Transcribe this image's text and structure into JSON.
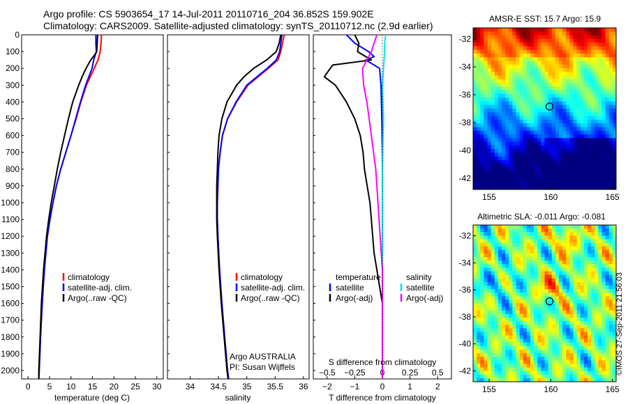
{
  "header": {
    "line1": "Argo profile: CS 5903654_17 14-Jul-2011 20110716_204 36.852S 159.902E",
    "line2": "Climatology: CARS2009. Satellite-adjusted climatology: synTS_20110712.nc (2.9d earlier)"
  },
  "colors": {
    "climatology": "#ff0000",
    "satellite": "#0000ff",
    "argo": "#000000",
    "sat_diff_T": "#0000ff",
    "sat_diff_S": "#00e5ee",
    "argo_diff_S": "#ff00ff"
  },
  "depth_axis": {
    "range": [
      0,
      2050
    ],
    "ticks": [
      0,
      100,
      200,
      300,
      400,
      500,
      600,
      700,
      800,
      900,
      1000,
      1100,
      1200,
      1300,
      1400,
      1500,
      1600,
      1700,
      1800,
      1900,
      2000
    ],
    "labels": [
      "0",
      "100",
      "200",
      "300",
      "400",
      "500",
      "600",
      "700",
      "800",
      "900",
      "1000",
      "1100",
      "1200",
      "1300",
      "1400",
      "1500",
      "1600",
      "1700",
      "1800",
      "1900",
      "2000"
    ]
  },
  "chart_data": [
    {
      "type": "line",
      "id": "temperature",
      "xlabel": "temperature (deg C)",
      "xlim": [
        -1.5,
        31.5
      ],
      "xticks": [
        0,
        5,
        10,
        15,
        20,
        25,
        30
      ],
      "xtick_labels": [
        "0",
        "5",
        "10",
        "15",
        "20",
        "25",
        "30"
      ],
      "legend": [
        "climatology",
        "satellite-adj. clim.",
        "Argo(..raw -QC)"
      ],
      "series": [
        {
          "name": "climatology",
          "color": "red",
          "depth": [
            0,
            50,
            100,
            150,
            200,
            300,
            400,
            500,
            600,
            700,
            800,
            900,
            1000,
            1100,
            1200,
            1400,
            1600,
            1800,
            2000,
            2050
          ],
          "values": [
            17.1,
            17.0,
            16.8,
            16.3,
            15.4,
            13.6,
            12.3,
            11.2,
            10.0,
            8.8,
            7.6,
            6.6,
            5.8,
            5.1,
            4.5,
            3.8,
            3.3,
            2.9,
            2.6,
            2.5
          ]
        },
        {
          "name": "satellite-adj. clim.",
          "color": "blue",
          "depth": [
            0,
            50,
            100,
            150,
            200,
            300,
            400,
            500,
            600,
            700,
            800,
            900,
            1000,
            1100,
            1200,
            1400,
            1600,
            1800,
            2000,
            2050
          ],
          "values": [
            15.8,
            15.8,
            15.9,
            15.3,
            14.9,
            13.4,
            12.2,
            11.1,
            10.0,
            8.8,
            7.6,
            6.6,
            5.8,
            5.1,
            4.5,
            3.8,
            3.3,
            2.9,
            2.6,
            2.5
          ]
        },
        {
          "name": "Argo(..raw -QC)",
          "color": "black",
          "depth": [
            0,
            50,
            100,
            120,
            150,
            200,
            250,
            300,
            400,
            500,
            600,
            700,
            800,
            900,
            1000,
            1100,
            1200,
            1400,
            1600,
            1800,
            2000,
            2050
          ],
          "values": [
            16.2,
            16.1,
            16.0,
            15.5,
            14.6,
            13.5,
            12.6,
            11.8,
            10.4,
            9.4,
            8.5,
            7.6,
            6.8,
            6.1,
            5.4,
            4.8,
            4.3,
            3.6,
            3.1,
            2.8,
            2.5,
            2.5
          ]
        }
      ]
    },
    {
      "type": "line",
      "id": "salinity",
      "xlabel": "salinity",
      "xlim": [
        33.6,
        36.1
      ],
      "xticks": [
        34,
        34.5,
        35,
        35.5,
        36
      ],
      "xtick_labels": [
        "34",
        "34.5",
        "35",
        "35.5",
        "36"
      ],
      "legend": [
        "climatology",
        "satellite-adj. clim.",
        "Argo(..raw -QC)"
      ],
      "annotation": [
        "Argo AUSTRALIA",
        "PI: Susan Wijffels"
      ],
      "series": [
        {
          "name": "climatology",
          "color": "red",
          "depth": [
            0,
            50,
            100,
            150,
            200,
            300,
            400,
            500,
            600,
            700,
            800,
            900,
            1000,
            1100,
            1200,
            1400,
            1600,
            1800,
            2000,
            2050
          ],
          "values": [
            35.66,
            35.63,
            35.6,
            35.55,
            35.38,
            35.02,
            34.82,
            34.66,
            34.57,
            34.53,
            34.5,
            34.49,
            34.48,
            34.48,
            34.49,
            34.52,
            34.56,
            34.61,
            34.66,
            34.68
          ]
        },
        {
          "name": "satellite-adj. clim.",
          "color": "blue",
          "depth": [
            0,
            50,
            100,
            150,
            200,
            300,
            400,
            500,
            600,
            700,
            800,
            900,
            1000,
            1100,
            1200,
            1400,
            1600,
            1800,
            2000,
            2050
          ],
          "values": [
            35.62,
            35.6,
            35.58,
            35.52,
            35.36,
            35.0,
            34.81,
            34.66,
            34.57,
            34.53,
            34.5,
            34.49,
            34.48,
            34.48,
            34.49,
            34.52,
            34.56,
            34.61,
            34.66,
            34.68
          ]
        },
        {
          "name": "Argo(..raw -QC)",
          "color": "black",
          "depth": [
            0,
            50,
            100,
            150,
            200,
            250,
            300,
            400,
            500,
            600,
            700,
            800,
            900,
            1000,
            1100,
            1200,
            1400,
            1600,
            1800,
            2000,
            2050
          ],
          "values": [
            35.6,
            35.57,
            35.52,
            35.35,
            35.12,
            34.95,
            34.82,
            34.65,
            34.56,
            34.51,
            34.49,
            34.48,
            34.47,
            34.47,
            34.47,
            34.48,
            34.51,
            34.55,
            34.6,
            34.65,
            34.67
          ]
        }
      ]
    },
    {
      "type": "line",
      "id": "difference",
      "xlabel": "T difference from climatology",
      "xlabel_top": "S difference from climatology",
      "xlim": [
        -2.5,
        2.5
      ],
      "xticks": [
        -2,
        -1,
        0,
        1,
        2
      ],
      "xtick_labels": [
        "−2",
        "−1",
        "0",
        "1",
        "2"
      ],
      "xticks_S": [
        -0.5,
        -0.25,
        0,
        0.25,
        0.5
      ],
      "xtick_labels_S": [
        "−0.5",
        "−0.25",
        "0",
        "0.25",
        "0.5"
      ],
      "legend_left_title": "temperature",
      "legend_right_title": "salinity",
      "legend_left": [
        "satellite",
        "Argo(-adj)"
      ],
      "legend_right": [
        "satellite",
        "Argo(-adj)"
      ],
      "series": [
        {
          "name": "T satellite",
          "color": "blue",
          "depth": [
            0,
            50,
            100,
            130,
            150,
            200,
            300,
            500,
            700,
            1000,
            1500,
            2000,
            2050
          ],
          "values": [
            -1.3,
            -1.0,
            -0.5,
            -0.3,
            -0.6,
            -0.1,
            -0.05,
            -0.02,
            0,
            0,
            0,
            0,
            0
          ]
        },
        {
          "name": "T Argo(-adj)",
          "color": "black",
          "depth": [
            0,
            50,
            100,
            150,
            180,
            250,
            300,
            400,
            500,
            600,
            700,
            800,
            900,
            1000,
            1100,
            1200,
            1300,
            1400,
            1500,
            1600,
            1800,
            2000,
            2050
          ],
          "values": [
            -1.0,
            -0.85,
            -0.9,
            -0.4,
            -1.8,
            -2.1,
            -1.7,
            -1.3,
            -1.0,
            -0.8,
            -0.7,
            -0.65,
            -0.55,
            -0.45,
            -0.4,
            -0.35,
            -0.3,
            -0.2,
            -0.1,
            0,
            0,
            0,
            0
          ]
        },
        {
          "name": "S satellite",
          "color": "cyan",
          "depth": [
            0,
            50,
            100,
            200,
            300,
            500,
            800,
            1000,
            1300,
            1600,
            2000,
            2050
          ],
          "values": [
            0.03,
            0.02,
            0.02,
            0.01,
            0.0,
            0.01,
            0.0,
            0.0,
            0.0,
            0.0,
            0.0,
            0.0
          ]
        },
        {
          "name": "S Argo(-adj)",
          "color": "magenta",
          "depth": [
            0,
            100,
            200,
            300,
            400,
            500,
            600,
            700,
            800,
            900,
            1000,
            1100,
            1200,
            1300,
            1400,
            1500,
            1600,
            1700,
            2050
          ],
          "values": [
            -0.05,
            -0.1,
            -0.18,
            -0.17,
            -0.14,
            -0.12,
            -0.1,
            -0.08,
            -0.06,
            -0.05,
            -0.04,
            -0.03,
            -0.02,
            -0.01,
            0,
            0,
            0,
            0,
            0
          ]
        }
      ]
    },
    {
      "type": "heatmap",
      "id": "sst-map",
      "title": "AMSR-E SST: 15.7 Argo: 15.9",
      "xlim": [
        153.7,
        165.3
      ],
      "ylim": [
        -42.8,
        -31.2
      ],
      "xticks": [
        155,
        160,
        165
      ],
      "xtick_labels": [
        "155",
        "160",
        "165"
      ],
      "yticks": [
        -32,
        -34,
        -36,
        -38,
        -40,
        -42
      ],
      "ytick_labels": [
        "-32",
        "-34",
        "-36",
        "-38",
        "-40",
        "-42"
      ],
      "marker": [
        159.9,
        -36.85
      ]
    },
    {
      "type": "heatmap",
      "id": "sla-map",
      "title": "Altimetric SLA: -0.011 Argo: -0.081",
      "xlim": [
        153.7,
        165.3
      ],
      "ylim": [
        -42.8,
        -31.2
      ],
      "xticks": [
        155,
        160,
        165
      ],
      "xtick_labels": [
        "155",
        "160",
        "165"
      ],
      "yticks": [
        -32,
        -34,
        -36,
        -38,
        -40,
        -42
      ],
      "ytick_labels": [
        "-32",
        "-34",
        "-36",
        "-38",
        "-40",
        "-42"
      ],
      "marker": [
        159.9,
        -36.85
      ]
    }
  ],
  "side_stamp": "©IMOS 27-Sep-2011 21:56:03"
}
